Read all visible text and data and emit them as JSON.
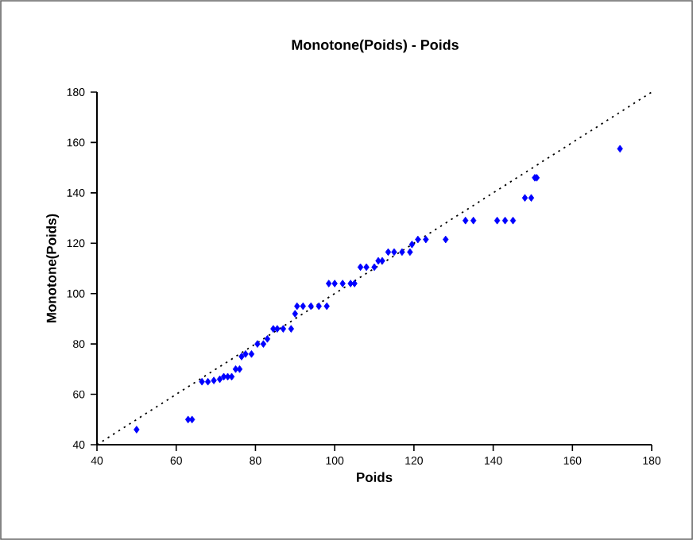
{
  "chart_data": {
    "type": "scatter",
    "title": "Monotone(Poids) - Poids",
    "xlabel": "Poids",
    "ylabel": "Monotone(Poids)",
    "xlim": [
      40,
      180
    ],
    "ylim": [
      40,
      180
    ],
    "xticks": [
      40,
      60,
      80,
      100,
      120,
      140,
      160,
      180
    ],
    "yticks": [
      40,
      60,
      80,
      100,
      120,
      140,
      160,
      180
    ],
    "grid": false,
    "series": [
      {
        "marker": "diamond",
        "color": "#0000ff",
        "x": [
          50,
          63,
          64,
          66.5,
          68,
          69.5,
          71,
          72,
          73,
          74,
          75,
          76,
          76.5,
          77.5,
          79,
          80.5,
          82,
          83,
          84.5,
          85.5,
          87,
          89,
          90,
          90.5,
          92,
          94,
          96,
          98,
          98.5,
          100,
          102,
          104,
          105,
          106.5,
          108,
          110,
          111,
          112,
          113.5,
          115,
          117,
          119,
          119.5,
          121,
          123,
          128,
          133,
          135,
          141,
          143,
          145,
          148,
          149.6,
          150.5,
          151,
          172
        ],
        "values": [
          46,
          50,
          50,
          65,
          65,
          65.5,
          66,
          67,
          67,
          67,
          70,
          70,
          75,
          76,
          76,
          80,
          80,
          82,
          86,
          86,
          86,
          86,
          92,
          95,
          95,
          95,
          95,
          95,
          104,
          104,
          104,
          104,
          104,
          110.5,
          110.5,
          110.5,
          113,
          113,
          116.5,
          116.5,
          116.5,
          116.5,
          119.5,
          121.5,
          121.5,
          121.5,
          129,
          129,
          129,
          129,
          129,
          138,
          138,
          146,
          146,
          157.5
        ]
      },
      {
        "type": "line",
        "marker": "none",
        "color": "#000000",
        "line_style": "dotted",
        "x": [
          40,
          180
        ],
        "values": [
          40,
          180
        ]
      }
    ]
  }
}
